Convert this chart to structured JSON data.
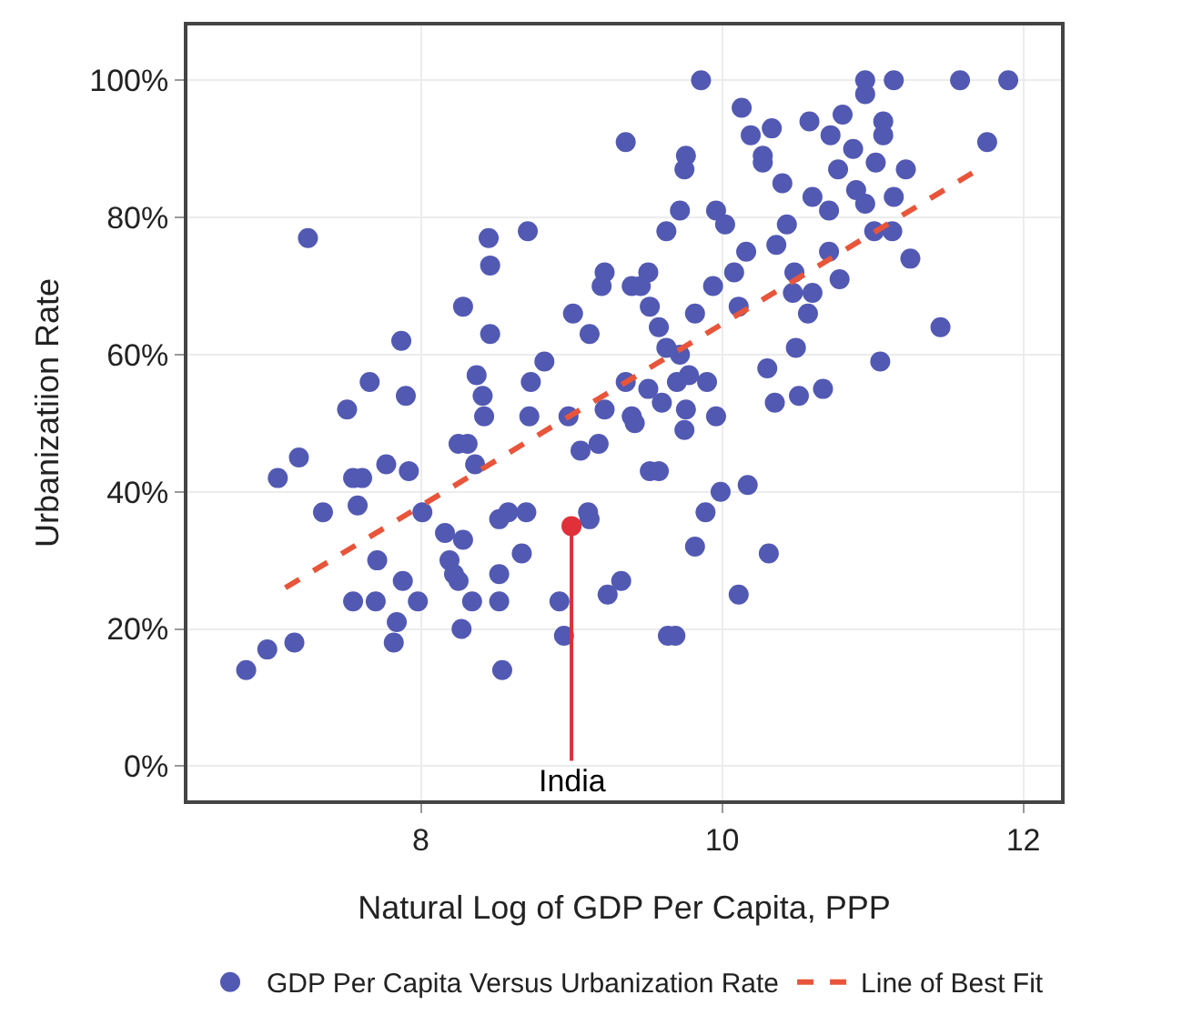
{
  "chart_data": {
    "type": "scatter",
    "xlabel": "Natural Log of GDP Per Capita, PPP",
    "ylabel": "Urbanizatiion Rate",
    "xlim": [
      6.45,
      12.25
    ],
    "ylim": [
      -5,
      108
    ],
    "xticks": [
      8,
      10,
      12
    ],
    "yticks": [
      {
        "value": 0,
        "label": "0%"
      },
      {
        "value": 20,
        "label": "20%"
      },
      {
        "value": 40,
        "label": "40%"
      },
      {
        "value": 60,
        "label": "60%"
      },
      {
        "value": 80,
        "label": "80%"
      },
      {
        "value": 100,
        "label": "100%"
      }
    ],
    "grid": true,
    "legend": "bottom",
    "marker": "circle",
    "annotations": [
      {
        "text": "India",
        "x": 9.0,
        "y": 35
      }
    ],
    "series": [
      {
        "name": "GDP Per Capita Versus Urbanization Rate",
        "color": "#5259b3",
        "x": [
          9.36,
          7.25,
          8.45,
          8.71,
          8.46,
          8.28,
          9.01,
          9.12,
          9.22,
          9.2,
          9.4,
          8.46,
          7.87,
          7.66,
          7.9,
          7.51,
          8.37,
          8.41,
          8.73,
          8.82,
          9.36,
          9.22,
          8.98,
          8.72,
          9.86,
          10.95,
          10.95,
          11.14,
          11.58,
          11.9,
          10.13,
          10.19,
          10.33,
          10.27,
          10.27,
          10.58,
          10.8,
          10.72,
          11.07,
          11.07,
          10.87,
          10.77,
          11.02,
          11.22,
          11.76,
          9.76,
          9.75,
          10.4,
          10.6,
          10.71,
          10.89,
          10.95,
          11.14,
          9.72,
          9.63,
          9.96,
          10.02,
          10.43,
          10.36,
          10.71,
          10.78,
          11.01,
          11.13,
          11.25,
          10.16,
          10.08,
          9.94,
          9.82,
          10.11,
          9.51,
          9.46,
          9.52,
          9.58,
          9.63,
          10.48,
          10.47,
          10.6,
          10.57,
          11.45,
          10.49,
          11.05,
          9.72,
          9.78,
          9.9,
          9.51,
          9.7,
          10.3,
          10.35,
          10.51,
          10.67,
          9.6,
          9.76,
          9.96,
          9.4,
          9.42,
          9.75,
          9.52,
          9.58,
          9.99,
          10.17,
          9.89,
          9.82,
          10.31,
          9.33,
          10.11,
          9.64,
          9.69,
          8.42,
          8.25,
          8.31,
          9.06,
          9.18,
          7.19,
          7.05,
          7.55,
          7.61,
          7.77,
          7.92,
          8.36,
          7.35,
          7.58,
          8.01,
          8.16,
          8.28,
          8.58,
          8.7,
          8.52,
          9.11,
          9.12,
          7.71,
          8.19,
          8.67,
          8.22,
          8.25,
          8.52,
          9.24,
          7.55,
          7.7,
          7.88,
          7.98,
          8.34,
          8.52,
          8.92,
          7.84,
          8.27,
          7.82,
          8.95,
          6.98,
          7.16,
          6.84,
          8.54
        ],
        "values": [
          91,
          77,
          77,
          78,
          73,
          67,
          66,
          63,
          72,
          70,
          70,
          63,
          62,
          56,
          54,
          52,
          57,
          54,
          56,
          59,
          56,
          52,
          51,
          51,
          100,
          100,
          98,
          100,
          100,
          100,
          96,
          92,
          93,
          89,
          88,
          94,
          95,
          92,
          94,
          92,
          90,
          87,
          88,
          87,
          91,
          89,
          87,
          85,
          83,
          81,
          84,
          82,
          83,
          81,
          78,
          81,
          79,
          79,
          76,
          75,
          71,
          78,
          78,
          74,
          75,
          72,
          70,
          66,
          67,
          72,
          70,
          67,
          64,
          61,
          72,
          69,
          69,
          66,
          64,
          61,
          59,
          60,
          57,
          56,
          55,
          56,
          58,
          53,
          54,
          55,
          53,
          52,
          51,
          51,
          50,
          49,
          43,
          43,
          40,
          41,
          37,
          32,
          31,
          27,
          25,
          19,
          19,
          51,
          47,
          47,
          46,
          47,
          45,
          42,
          42,
          42,
          44,
          43,
          44,
          37,
          38,
          37,
          34,
          33,
          37,
          37,
          36,
          37,
          36,
          30,
          30,
          31,
          28,
          27,
          28,
          25,
          24,
          24,
          27,
          24,
          24,
          24,
          24,
          21,
          20,
          18,
          19,
          17,
          18,
          14,
          14
        ]
      },
      {
        "color": "#e0303a",
        "x": [
          9.0
        ],
        "values": [
          35
        ]
      },
      {
        "name": "Line of Best Fit",
        "type": "line",
        "marker": "none",
        "color": "#e8553a",
        "line_style": "dashed",
        "x": [
          7.1,
          11.7
        ],
        "values": [
          26,
          87
        ]
      }
    ]
  }
}
